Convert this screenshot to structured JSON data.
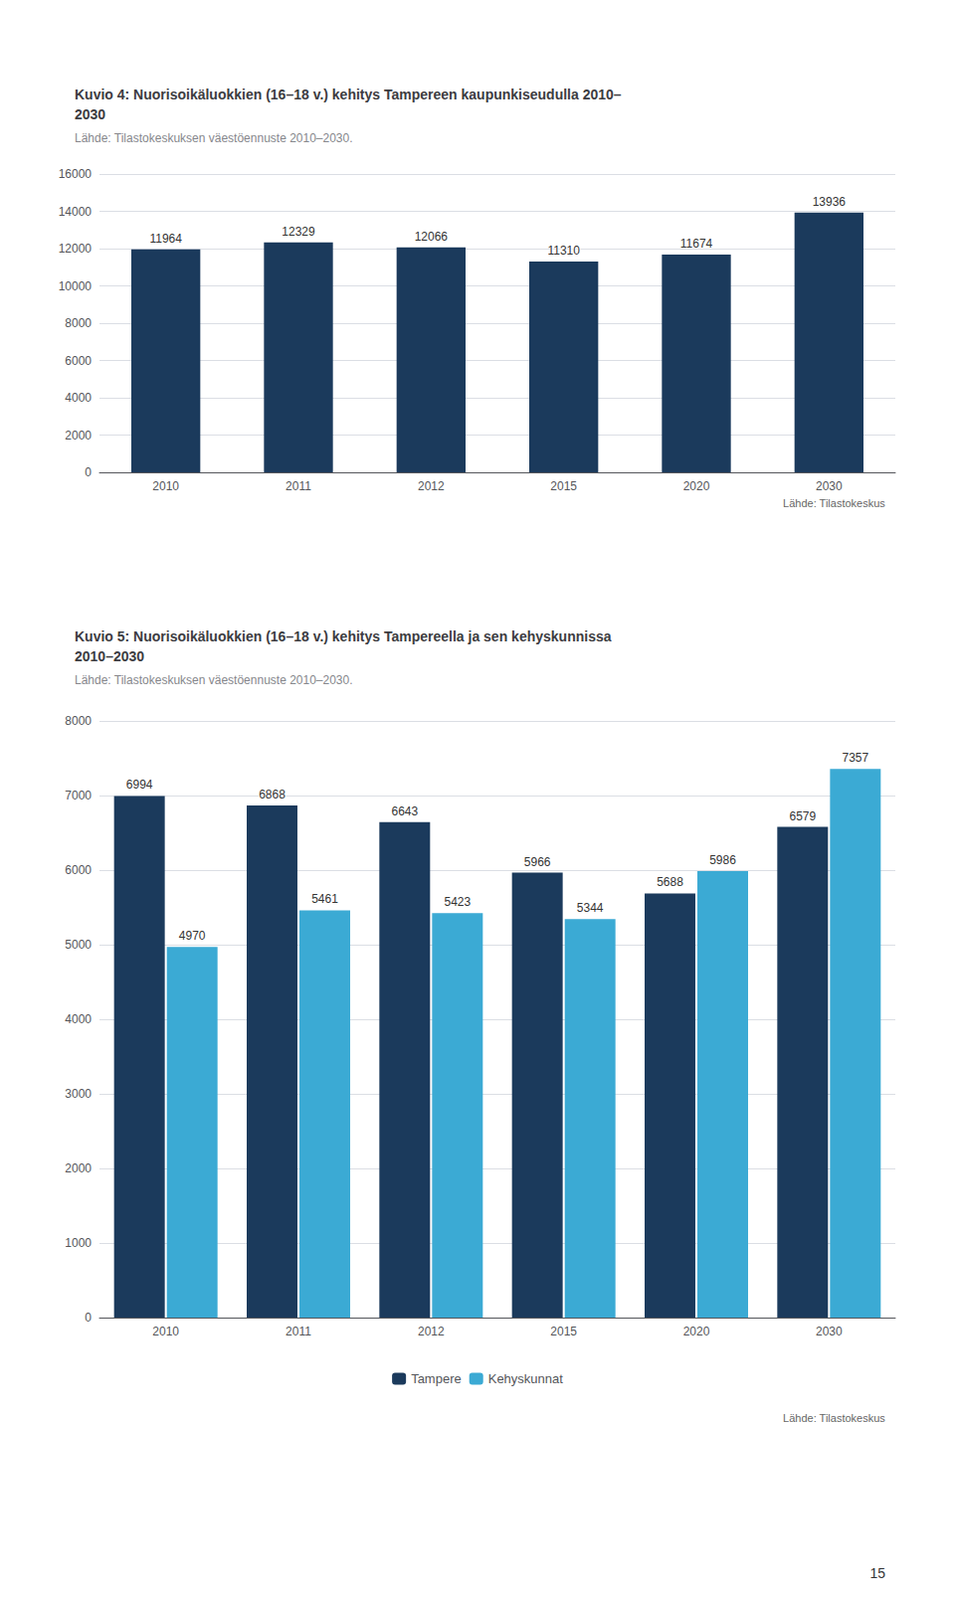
{
  "chart_data": [
    {
      "type": "bar",
      "title": "Kuvio 4: Nuorisoikäluokkien (16–18 v.) kehitys Tampereen kaupunkiseudulla 2010–\n2030",
      "subtitle": "Lähde: Tilastokeskuksen väestöennuste 2010–2030.",
      "categories": [
        "2010",
        "2011",
        "2012",
        "2015",
        "2020",
        "2030"
      ],
      "values": [
        11964,
        12329,
        12066,
        11310,
        11674,
        13936
      ],
      "color": "#1b3a5c",
      "ylim": [
        0,
        16000
      ],
      "yticks": [
        0,
        2000,
        4000,
        6000,
        8000,
        10000,
        12000,
        14000,
        16000
      ],
      "grid": true,
      "data_labels": true,
      "annotations": [
        "Lähde: Tilastokeskus"
      ]
    },
    {
      "type": "bar",
      "title": "Kuvio 5: Nuorisoikäluokkien (16–18 v.) kehitys Tampereella ja sen kehyskunnissa\n2010–2030",
      "subtitle": "Lähde: Tilastokeskuksen väestöennuste 2010–2030.",
      "categories": [
        "2010",
        "2011",
        "2012",
        "2015",
        "2020",
        "2030"
      ],
      "series": [
        {
          "name": "Tampere",
          "color": "#1b3a5c",
          "values": [
            6994,
            6868,
            6643,
            5966,
            5688,
            6579
          ]
        },
        {
          "name": "Kehyskunnat",
          "color": "#3baad4",
          "values": [
            4970,
            5461,
            5423,
            5344,
            5986,
            7357
          ]
        }
      ],
      "ylim": [
        0,
        8000
      ],
      "yticks": [
        0,
        1000,
        2000,
        3000,
        4000,
        5000,
        6000,
        7000,
        8000
      ],
      "grid": true,
      "data_labels": true,
      "legend": "bottom",
      "annotations": [
        "Lähde: Tilastokeskus",
        "15"
      ]
    }
  ]
}
